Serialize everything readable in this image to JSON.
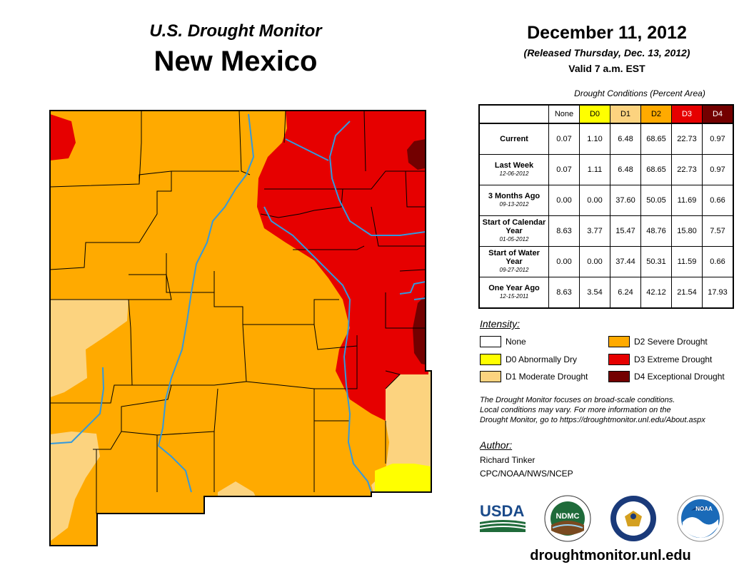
{
  "header": {
    "product": "U.S. Drought Monitor",
    "state": "New Mexico",
    "date": "December 11, 2012",
    "released": "(Released Thursday, Dec. 13, 2012)",
    "valid": "Valid 7 a.m. EST"
  },
  "table": {
    "caption": "Drought Conditions (Percent Area)",
    "columns": [
      "None",
      "D0",
      "D1",
      "D2",
      "D3",
      "D4"
    ],
    "rows": [
      {
        "label": "Current",
        "date": "",
        "values": [
          "0.07",
          "1.10",
          "6.48",
          "68.65",
          "22.73",
          "0.97"
        ]
      },
      {
        "label": "Last Week",
        "date": "12-06-2012",
        "values": [
          "0.07",
          "1.11",
          "6.48",
          "68.65",
          "22.73",
          "0.97"
        ]
      },
      {
        "label": "3 Months Ago",
        "date": "09-13-2012",
        "values": [
          "0.00",
          "0.00",
          "37.60",
          "50.05",
          "11.69",
          "0.66"
        ]
      },
      {
        "label": "Start of Calendar Year",
        "date": "01-05-2012",
        "values": [
          "8.63",
          "3.77",
          "15.47",
          "48.76",
          "15.80",
          "7.57"
        ]
      },
      {
        "label": "Start of Water Year",
        "date": "09-27-2012",
        "values": [
          "0.00",
          "0.00",
          "37.44",
          "50.31",
          "11.59",
          "0.66"
        ]
      },
      {
        "label": "One Year Ago",
        "date": "12-15-2011",
        "values": [
          "8.63",
          "3.54",
          "6.24",
          "42.12",
          "21.54",
          "17.93"
        ]
      }
    ]
  },
  "legend": {
    "title": "Intensity:",
    "items": [
      {
        "label": "None",
        "color": "#ffffff"
      },
      {
        "label": "D0 Abnormally Dry",
        "color": "#ffff00"
      },
      {
        "label": "D1 Moderate Drought",
        "color": "#fcd37f"
      },
      {
        "label": "D2 Severe Drought",
        "color": "#ffaa00"
      },
      {
        "label": "D3 Extreme Drought",
        "color": "#e60000"
      },
      {
        "label": "D4 Exceptional Drought",
        "color": "#730000"
      }
    ]
  },
  "disclaimer": {
    "line1": "The Drought Monitor focuses on broad-scale conditions.",
    "line2": "Local conditions may vary. For more information on the",
    "line3": "Drought Monitor, go to https://droughtmonitor.unl.edu/About.aspx"
  },
  "author": {
    "title": "Author:",
    "name": "Richard Tinker",
    "org": "CPC/NOAA/NWS/NCEP"
  },
  "logos": {
    "usda": "USDA",
    "ndmc": "NDMC",
    "noaa": "NOAA"
  },
  "website": "droughtmonitor.unl.edu",
  "colors": {
    "d0": "#ffff00",
    "d1": "#fcd37f",
    "d2": "#ffaa00",
    "d3": "#e60000",
    "d4": "#730000",
    "river": "#3399dd"
  }
}
